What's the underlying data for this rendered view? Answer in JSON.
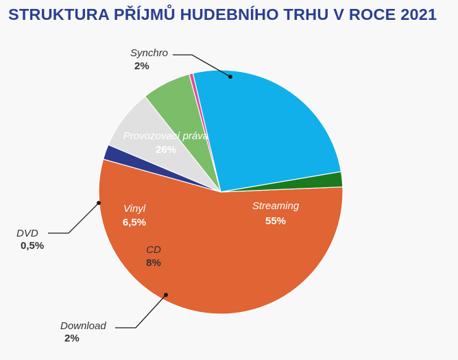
{
  "chart_data": {
    "type": "pie",
    "title": "STRUKTURA PŘÍJMŮ HUDEBNÍHO TRHU V ROCE 2021",
    "slices": [
      {
        "name": "Streaming",
        "value": 55,
        "value_label": "55%",
        "color": "#e06434",
        "text_color": "#ffffff",
        "position": "inside"
      },
      {
        "name": "Download",
        "value": 2,
        "value_label": "2%",
        "color": "#2b3a8c",
        "text_color": "#333333",
        "position": "outside"
      },
      {
        "name": "CD",
        "value": 8,
        "value_label": "8%",
        "color": "#e0e0e0",
        "text_color": "#333333",
        "position": "inside"
      },
      {
        "name": "Vinyl",
        "value": 6.5,
        "value_label": "6,5%",
        "color": "#7cbd6a",
        "text_color": "#ffffff",
        "position": "inside"
      },
      {
        "name": "DVD",
        "value": 0.5,
        "value_label": "0,5%",
        "color": "#d94f9a",
        "text_color": "#333333",
        "position": "outside"
      },
      {
        "name": "Provozovací práva",
        "value": 26,
        "value_label": "26%",
        "color": "#12b0ea",
        "text_color": "#ffffff",
        "position": "inside"
      },
      {
        "name": "Synchro",
        "value": 2,
        "value_label": "2%",
        "color": "#1b7a1e",
        "text_color": "#333333",
        "position": "outside"
      }
    ]
  }
}
